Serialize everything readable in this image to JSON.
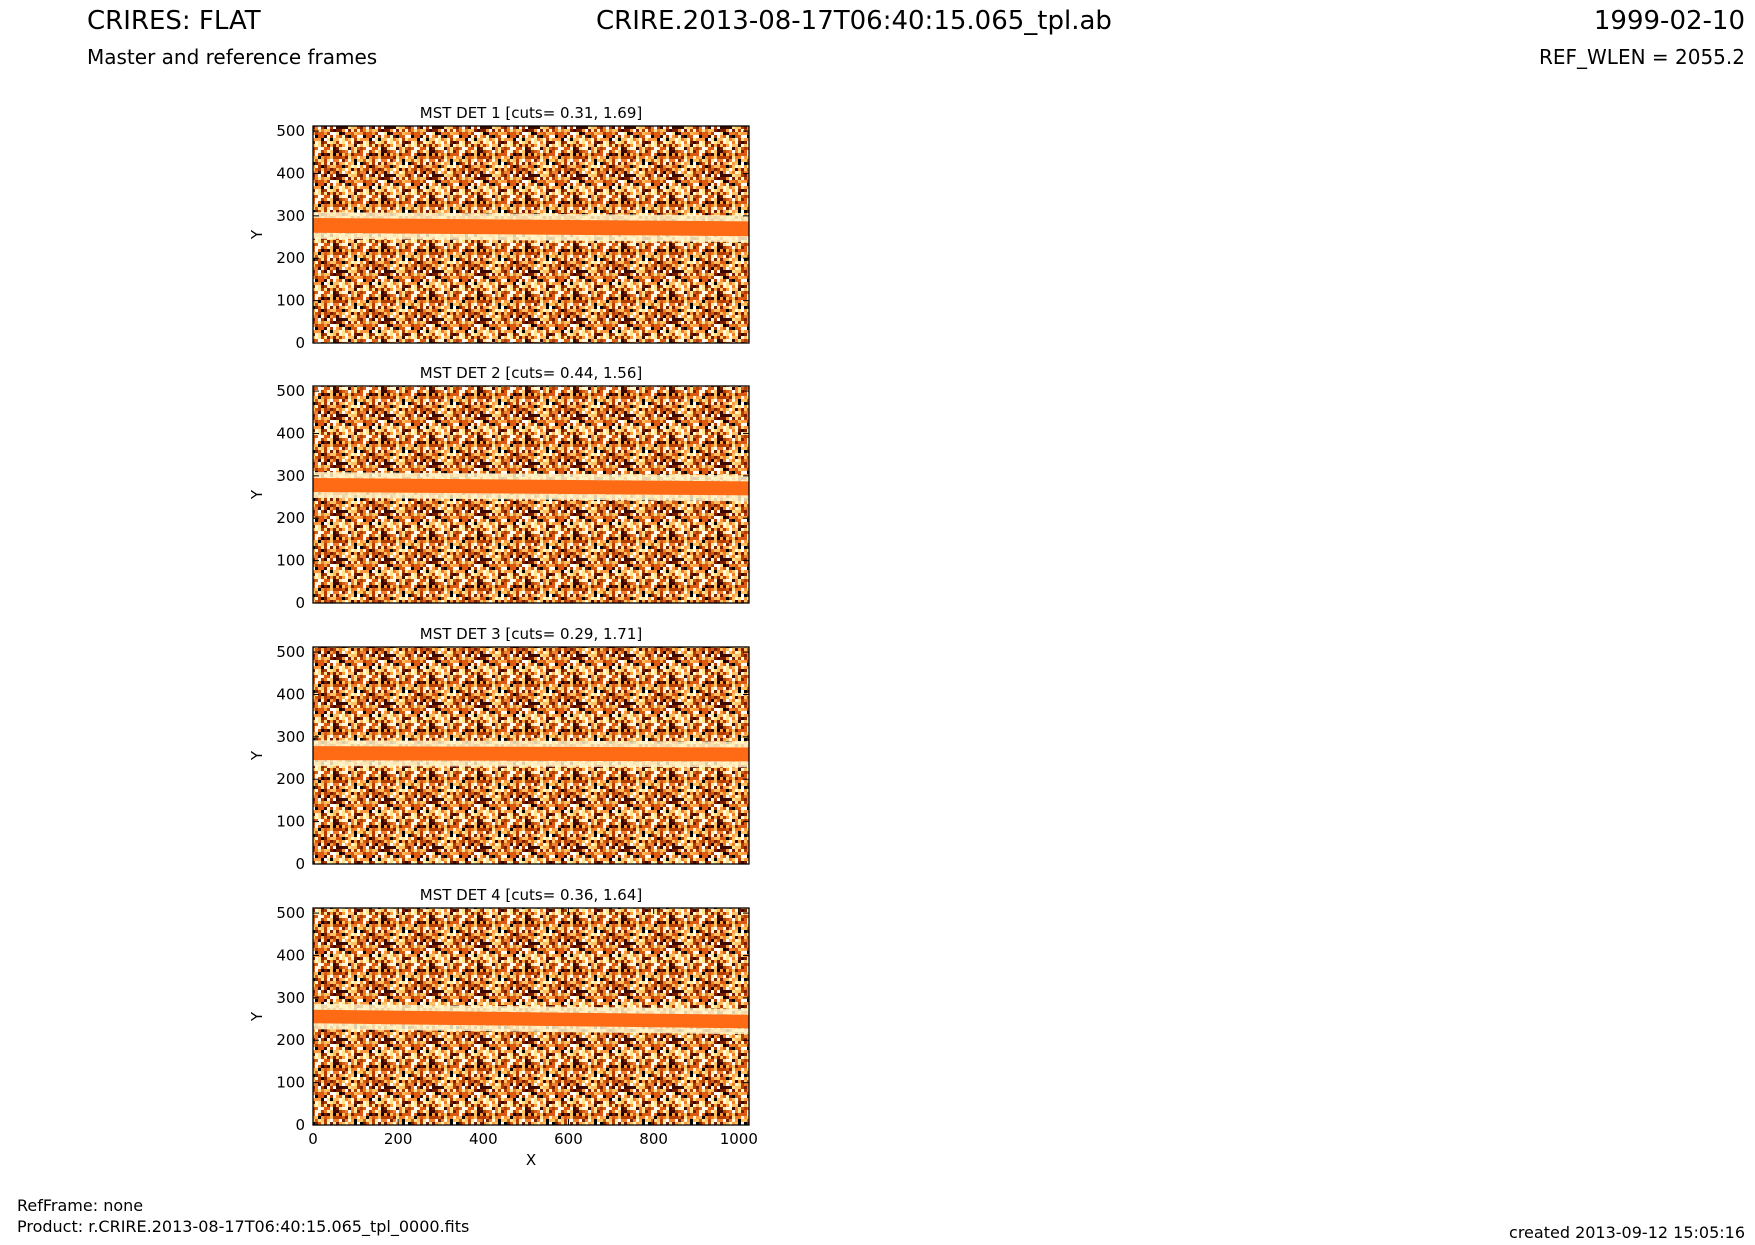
{
  "header": {
    "title": "CRIRES: FLAT",
    "subtitle": "Master and reference frames",
    "filename": "CRIRE.2013-08-17T06:40:15.065_tpl.ab",
    "date": "1999-02-10",
    "ref_wlen": "REF_WLEN = 2055.2"
  },
  "footer": {
    "ref_frame": "RefFrame: none",
    "product": "Product: r.CRIRE.2013-08-17T06:40:15.065_tpl_0000.fits",
    "created": "created 2013-09-12 15:05:16"
  },
  "colors": {
    "band": "#ff6a14",
    "noise": [
      "#000000",
      "#3a0a00",
      "#7a1e00",
      "#b33c00",
      "#d95a10",
      "#f07d28",
      "#ff9a3c",
      "#ffc060",
      "#ffe490",
      "#fff8d6",
      "#ffffff"
    ]
  },
  "chart_data": [
    {
      "type": "heatmap",
      "title": "MST DET 1 [cuts= 0.31, 1.69]",
      "cuts": [
        0.31,
        1.69
      ],
      "ylabel": "Y",
      "xlabel": "",
      "xlim": [
        0,
        1024
      ],
      "ylim": [
        0,
        512
      ],
      "yticks": [
        0,
        100,
        200,
        300,
        400,
        500
      ],
      "xticks": [],
      "band_y": [
        260,
        295
      ],
      "band_slope": -8
    },
    {
      "type": "heatmap",
      "title": "MST DET 2 [cuts= 0.44, 1.56]",
      "cuts": [
        0.44,
        1.56
      ],
      "ylabel": "Y",
      "xlabel": "",
      "xlim": [
        0,
        1024
      ],
      "ylim": [
        0,
        512
      ],
      "yticks": [
        0,
        100,
        200,
        300,
        400,
        500
      ],
      "xticks": [],
      "band_y": [
        262,
        295
      ],
      "band_slope": -8
    },
    {
      "type": "heatmap",
      "title": "MST DET 3 [cuts= 0.29, 1.71]",
      "cuts": [
        0.29,
        1.71
      ],
      "ylabel": "Y",
      "xlabel": "",
      "xlim": [
        0,
        1024
      ],
      "ylim": [
        0,
        512
      ],
      "yticks": [
        0,
        100,
        200,
        300,
        400,
        500
      ],
      "xticks": [],
      "band_y": [
        245,
        278
      ],
      "band_slope": -3
    },
    {
      "type": "heatmap",
      "title": "MST DET 4 [cuts= 0.36, 1.64]",
      "cuts": [
        0.36,
        1.64
      ],
      "ylabel": "Y",
      "xlabel": "X",
      "xlim": [
        0,
        1024
      ],
      "ylim": [
        0,
        512
      ],
      "yticks": [
        0,
        100,
        200,
        300,
        400,
        500
      ],
      "xticks": [
        0,
        200,
        400,
        600,
        800,
        1000
      ],
      "band_y": [
        240,
        272
      ],
      "band_slope": -12
    }
  ]
}
